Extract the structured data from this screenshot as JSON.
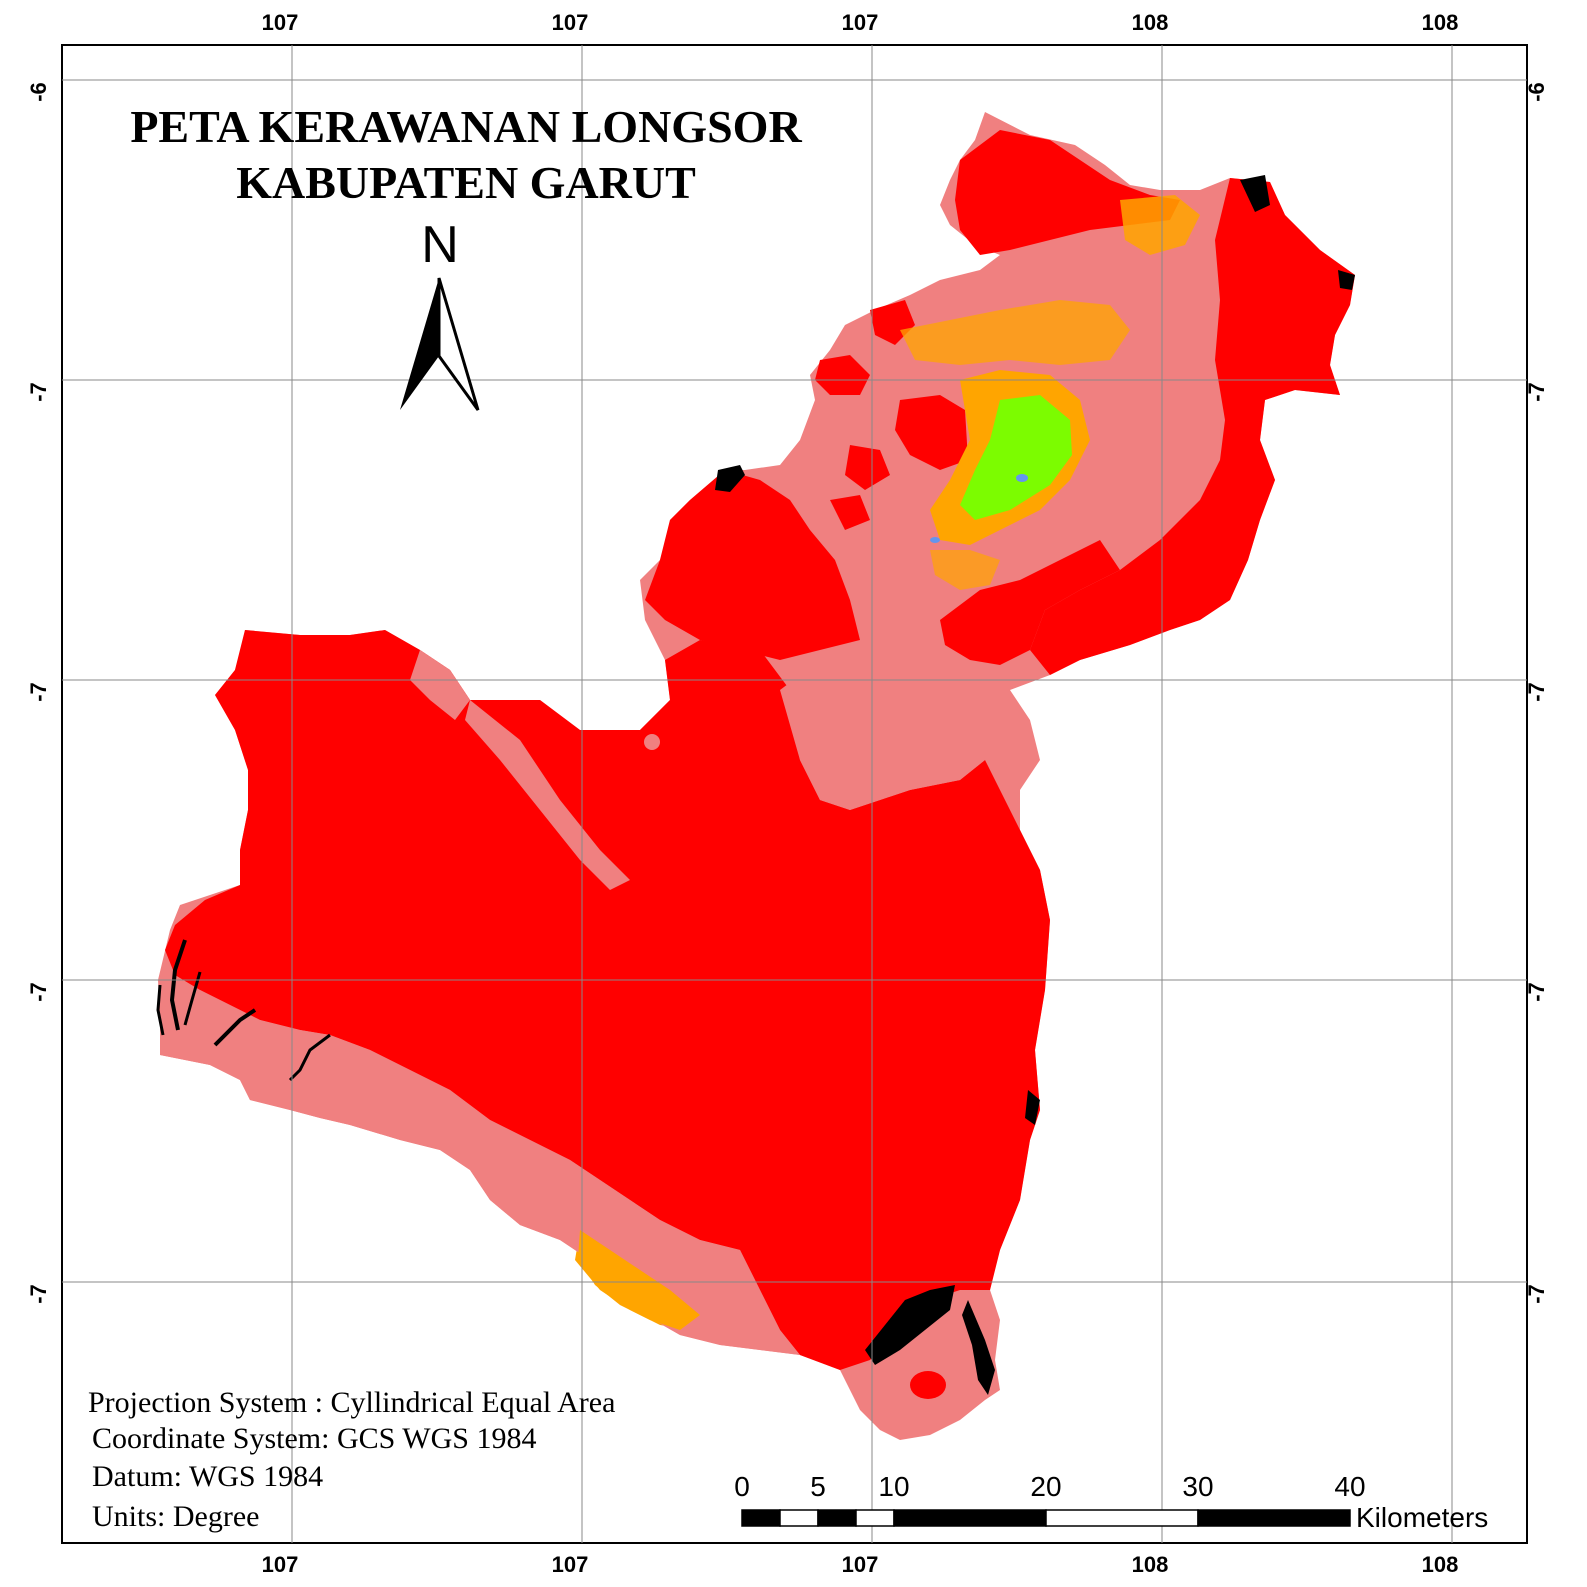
{
  "title_line1": "PETA KERAWANAN LONGSOR",
  "title_line2": "KABUPATEN GARUT",
  "north_label": "N",
  "ticks": {
    "top": [
      "107",
      "107",
      "107",
      "108",
      "108"
    ],
    "bottom": [
      "107",
      "107",
      "107",
      "108",
      "108"
    ],
    "left": [
      "-6",
      "-7",
      "-7",
      "-7",
      "-7"
    ],
    "right": [
      "-6",
      "-7",
      "-7",
      "-7",
      "-7"
    ]
  },
  "info": {
    "projection": "Projection System : Cyllindrical Equal Area",
    "coordinate": "Coordinate System: GCS WGS 1984",
    "datum": "Datum: WGS 1984",
    "units": "Units: Degree"
  },
  "scale_bar": {
    "labels": [
      "0",
      "5",
      "10",
      "20",
      "30",
      "40"
    ],
    "unit": "Kilometers"
  },
  "colors": {
    "very_high": "#ff0000",
    "high": "#f08080",
    "moderate": "#ffa500",
    "low": "#7cfc00",
    "water": "#6495ed",
    "black": "#000000"
  }
}
